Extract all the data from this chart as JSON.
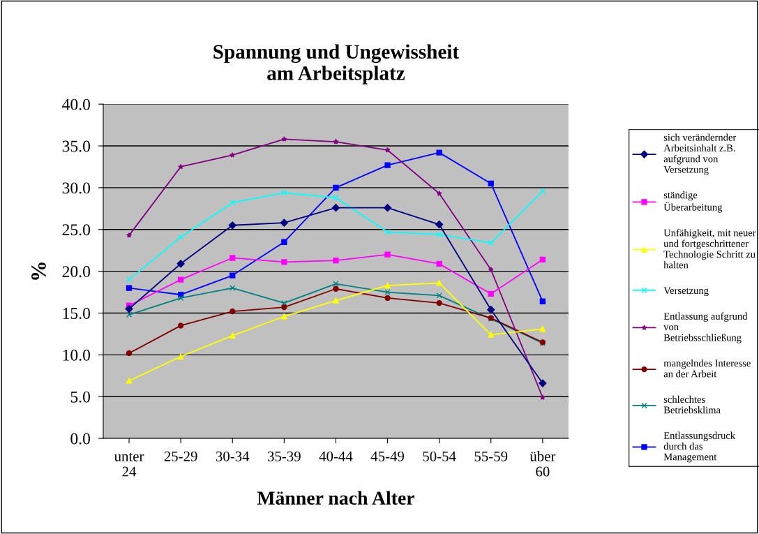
{
  "chart_data": {
    "type": "line",
    "title": "Spannung und Ungewissheit\nam Arbeitsplatz",
    "xlabel": "Männer nach Alter",
    "ylabel": "%",
    "categories": [
      "unter\n24",
      "25-29",
      "30-34",
      "35-39",
      "40-44",
      "45-49",
      "50-54",
      "55-59",
      "über\n60"
    ],
    "ylim": [
      0,
      40
    ],
    "yticks": [
      {
        "value": 0,
        "label": "0.0"
      },
      {
        "value": 5,
        "label": "5.0"
      },
      {
        "value": 10,
        "label": "10.0"
      },
      {
        "value": 15,
        "label": "15.0"
      },
      {
        "value": 20,
        "label": "20.0"
      },
      {
        "value": 25,
        "label": "25.0"
      },
      {
        "value": 30,
        "label": "30.0"
      },
      {
        "value": 35,
        "label": "35.0"
      },
      {
        "value": 40,
        "label": "40.0"
      }
    ],
    "grid": "y",
    "legend": "right",
    "line_style": "solid",
    "series": [
      {
        "name": "sich verändernder\nArbeitsinhalt z.B.\naufgrund von\nVersetzung",
        "color": "#000080",
        "marker": "diamond",
        "values": [
          15.5,
          20.9,
          25.5,
          25.8,
          27.6,
          27.6,
          25.6,
          15.4,
          6.6
        ]
      },
      {
        "name": "ständige\nÜberarbeitung",
        "color": "#ff00ff",
        "marker": "square",
        "values": [
          15.9,
          19.0,
          21.6,
          21.1,
          21.3,
          22.0,
          20.9,
          17.3,
          21.4
        ]
      },
      {
        "name": "Unfähigkeit, mit neuer\nund fortgeschrittener\nTechnologie Schritt zu\nhalten",
        "color": "#ffff00",
        "marker": "triangle",
        "values": [
          6.9,
          9.8,
          12.3,
          14.6,
          16.5,
          18.3,
          18.6,
          12.4,
          13.1
        ]
      },
      {
        "name": "Versetzung",
        "color": "#00ffff",
        "marker": "cross",
        "values": [
          19.0,
          24.1,
          28.2,
          29.4,
          28.8,
          24.7,
          24.4,
          23.4,
          29.6
        ]
      },
      {
        "name": "Entlassung aufgrund\nvon\nBetriebsschließung",
        "color": "#800080",
        "marker": "star",
        "values": [
          24.3,
          32.5,
          33.9,
          35.8,
          35.5,
          34.5,
          29.3,
          20.2,
          4.9
        ]
      },
      {
        "name": "mangelndes Interesse\nan der Arbeit",
        "color": "#800000",
        "marker": "circle",
        "values": [
          10.2,
          13.5,
          15.2,
          15.7,
          17.9,
          16.8,
          16.2,
          14.4,
          11.5
        ]
      },
      {
        "name": "schlechtes\nBetriebsklima",
        "color": "#008080",
        "marker": "cross",
        "values": [
          14.8,
          16.8,
          18.0,
          16.2,
          18.5,
          17.5,
          17.1,
          14.3,
          11.4
        ]
      },
      {
        "name": "Entlassungsdruck\ndurch das\nManagement",
        "color": "#0000ff",
        "marker": "square",
        "values": [
          18.0,
          17.2,
          19.5,
          23.5,
          30.0,
          32.7,
          34.2,
          30.5,
          16.4
        ]
      }
    ]
  }
}
